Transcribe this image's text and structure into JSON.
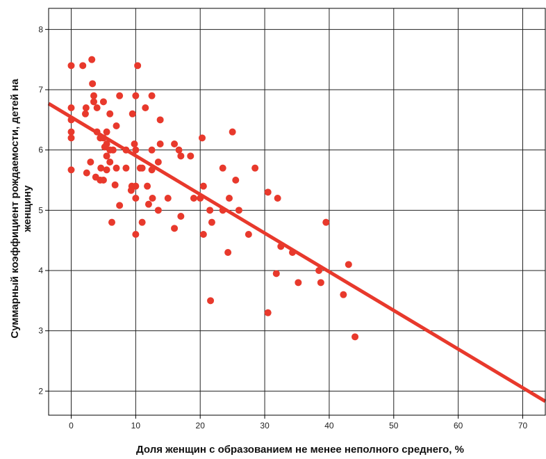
{
  "chart_data": {
    "type": "scatter",
    "xlabel": "Доля женщин с образованием не менее неполного среднего, %",
    "ylabel_lines": [
      "Суммарный коэффициент рождаемости, детей на",
      "женщину"
    ],
    "xlim": [
      -3.5,
      73.5
    ],
    "ylim": [
      1.6,
      8.35
    ],
    "xticks": [
      0,
      10,
      20,
      30,
      40,
      50,
      60,
      70
    ],
    "yticks": [
      2,
      3,
      4,
      5,
      6,
      7,
      8
    ],
    "grid": true,
    "colors": {
      "points": "#e8392c",
      "line": "#e8392c",
      "grid": "#222222",
      "axis": "#000000"
    },
    "trendline": {
      "x": [
        -3.5,
        73.5
      ],
      "y": [
        6.77,
        1.83
      ]
    },
    "points": [
      [
        0,
        7.4
      ],
      [
        0,
        6.7
      ],
      [
        0,
        6.5
      ],
      [
        0,
        6.3
      ],
      [
        0,
        6.2
      ],
      [
        0,
        5.67
      ],
      [
        1.8,
        7.4
      ],
      [
        3.2,
        7.5
      ],
      [
        3.3,
        7.1
      ],
      [
        3.5,
        6.9
      ],
      [
        3.5,
        6.8
      ],
      [
        2.3,
        6.7
      ],
      [
        2.2,
        6.6
      ],
      [
        4,
        6.7
      ],
      [
        5,
        6.8
      ],
      [
        4,
        6.3
      ],
      [
        4.5,
        6.2
      ],
      [
        5,
        6.2
      ],
      [
        5.5,
        6.3
      ],
      [
        6,
        6.6
      ],
      [
        5.5,
        6.1
      ],
      [
        6,
        6.0
      ],
      [
        5.5,
        5.9
      ],
      [
        6,
        5.8
      ],
      [
        5.2,
        6.05
      ],
      [
        6.5,
        6.0
      ],
      [
        3,
        5.8
      ],
      [
        5.5,
        5.67
      ],
      [
        4.6,
        5.7
      ],
      [
        2.4,
        5.62
      ],
      [
        3.8,
        5.55
      ],
      [
        4.5,
        5.5
      ],
      [
        5,
        5.5
      ],
      [
        6.8,
        5.42
      ],
      [
        6.3,
        4.8
      ],
      [
        7.5,
        5.08
      ],
      [
        7,
        6.4
      ],
      [
        7.5,
        6.9
      ],
      [
        9.5,
        6.6
      ],
      [
        10,
        6.9
      ],
      [
        10.3,
        7.4
      ],
      [
        12.5,
        6.9
      ],
      [
        11.5,
        6.7
      ],
      [
        13.8,
        6.5
      ],
      [
        9.8,
        6.1
      ],
      [
        10,
        6.0
      ],
      [
        8.5,
        6.0
      ],
      [
        8.5,
        5.7
      ],
      [
        7,
        5.7
      ],
      [
        9.3,
        5.33
      ],
      [
        9.4,
        5.4
      ],
      [
        10,
        5.4
      ],
      [
        10,
        5.2
      ],
      [
        10.7,
        5.7
      ],
      [
        11,
        5.7
      ],
      [
        12.5,
        6.0
      ],
      [
        13.8,
        6.1
      ],
      [
        13.5,
        5.8
      ],
      [
        12.5,
        5.67
      ],
      [
        11.8,
        5.4
      ],
      [
        12,
        5.1
      ],
      [
        13.5,
        5.0
      ],
      [
        12.6,
        5.2
      ],
      [
        11,
        4.8
      ],
      [
        10,
        4.6
      ],
      [
        16,
        6.1
      ],
      [
        16.7,
        6.0
      ],
      [
        17,
        5.9
      ],
      [
        18.5,
        5.9
      ],
      [
        15,
        5.2
      ],
      [
        17,
        4.9
      ],
      [
        16,
        4.7
      ],
      [
        19,
        5.2
      ],
      [
        20,
        5.2
      ],
      [
        20.3,
        6.2
      ],
      [
        20.5,
        5.4
      ],
      [
        21.5,
        5.0
      ],
      [
        20.5,
        4.6
      ],
      [
        21.8,
        4.8
      ],
      [
        23.5,
        5.7
      ],
      [
        23.5,
        5.0
      ],
      [
        24.5,
        5.2
      ],
      [
        25,
        6.3
      ],
      [
        25.5,
        5.5
      ],
      [
        26,
        5.0
      ],
      [
        28.5,
        5.7
      ],
      [
        27.5,
        4.6
      ],
      [
        24.3,
        4.3
      ],
      [
        21.6,
        3.5
      ],
      [
        30.5,
        5.3
      ],
      [
        32,
        5.2
      ],
      [
        32.5,
        4.4
      ],
      [
        34.3,
        4.3
      ],
      [
        31.8,
        3.95
      ],
      [
        35.2,
        3.8
      ],
      [
        30.5,
        3.3
      ],
      [
        38.4,
        4.0
      ],
      [
        38.7,
        3.8
      ],
      [
        39.5,
        4.8
      ],
      [
        42.2,
        3.6
      ],
      [
        43,
        4.1
      ],
      [
        44,
        2.9
      ]
    ]
  }
}
